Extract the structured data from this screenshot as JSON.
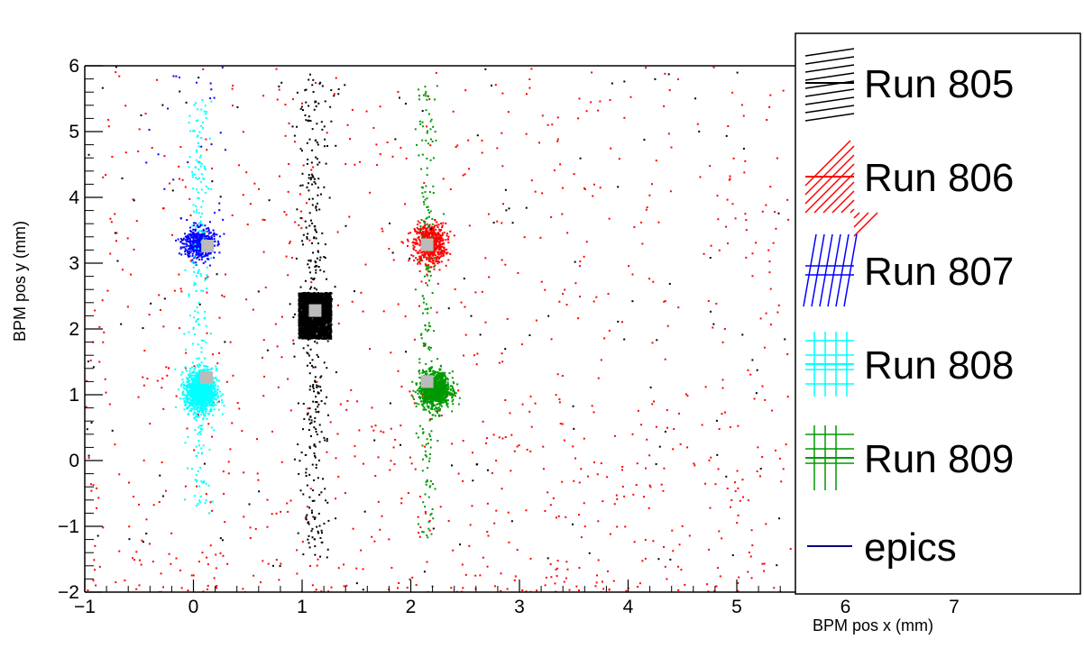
{
  "chart_data": {
    "type": "scatter",
    "title": "",
    "xlabel": "BPM pos x (mm)",
    "ylabel": "BPM pos y (mm)",
    "xlim": [
      -1,
      8
    ],
    "ylim": [
      -2,
      6
    ],
    "x_ticks": [
      {
        "value": -1,
        "label": "−1"
      },
      {
        "value": 0,
        "label": "0"
      },
      {
        "value": 1,
        "label": "1"
      },
      {
        "value": 2,
        "label": "2"
      },
      {
        "value": 3,
        "label": "3"
      },
      {
        "value": 4,
        "label": "4"
      },
      {
        "value": 5,
        "label": "5"
      },
      {
        "value": 6,
        "label": "6"
      },
      {
        "value": 7,
        "label": "7"
      }
    ],
    "y_ticks": [
      {
        "value": -2,
        "label": "−2"
      },
      {
        "value": -1,
        "label": "−1"
      },
      {
        "value": 0,
        "label": "0"
      },
      {
        "value": 1,
        "label": "1"
      },
      {
        "value": 2,
        "label": "2"
      },
      {
        "value": 3,
        "label": "3"
      },
      {
        "value": 4,
        "label": "4"
      },
      {
        "value": 5,
        "label": "5"
      },
      {
        "value": 6,
        "label": "6"
      }
    ],
    "grid": false,
    "legend_position": "right",
    "series": [
      {
        "name": "Run 805",
        "color": "#000000",
        "pattern": "hatch-lines",
        "core": {
          "x": [
            0.97,
            1.27
          ],
          "y": [
            1.85,
            2.55
          ]
        },
        "spread": {
          "x": [
            0.82,
            1.3
          ],
          "y": [
            -1.5,
            5.9
          ]
        }
      },
      {
        "name": "Run 806",
        "color": "#ff0000",
        "pattern": "diagonal-hatch",
        "core": {
          "x": [
            2.03,
            2.33
          ],
          "y": [
            3.0,
            3.6
          ]
        },
        "spread": {
          "x": [
            -1,
            5.5
          ],
          "y": [
            -2,
            6
          ]
        }
      },
      {
        "name": "Run 807",
        "color": "#0000ff",
        "pattern": "slant-grid",
        "core": {
          "x": [
            -0.1,
            0.2
          ],
          "y": [
            3.0,
            3.6
          ]
        },
        "spread": {
          "x": [
            -0.5,
            0.3
          ],
          "y": [
            3.0,
            6.0
          ]
        }
      },
      {
        "name": "Run 808",
        "color": "#00ffff",
        "pattern": "grid",
        "core": {
          "x": [
            -0.08,
            0.22
          ],
          "y": [
            0.7,
            1.4
          ]
        },
        "spread": {
          "x": [
            -0.1,
            0.25
          ],
          "y": [
            -0.8,
            5.5
          ]
        }
      },
      {
        "name": "Run 809",
        "color": "#009900",
        "pattern": "grid",
        "core": {
          "x": [
            2.05,
            2.35
          ],
          "y": [
            0.8,
            1.4
          ]
        },
        "spread": {
          "x": [
            2.0,
            2.3
          ],
          "y": [
            -1.2,
            5.7
          ]
        }
      },
      {
        "name": "epics",
        "color": "#000080",
        "pattern": "line",
        "points": []
      }
    ],
    "epics_markers": [
      {
        "x": 0.13,
        "y": 3.26
      },
      {
        "x": 1.12,
        "y": 2.28
      },
      {
        "x": 2.15,
        "y": 3.28
      },
      {
        "x": 0.12,
        "y": 1.26
      },
      {
        "x": 2.15,
        "y": 1.2
      }
    ]
  }
}
